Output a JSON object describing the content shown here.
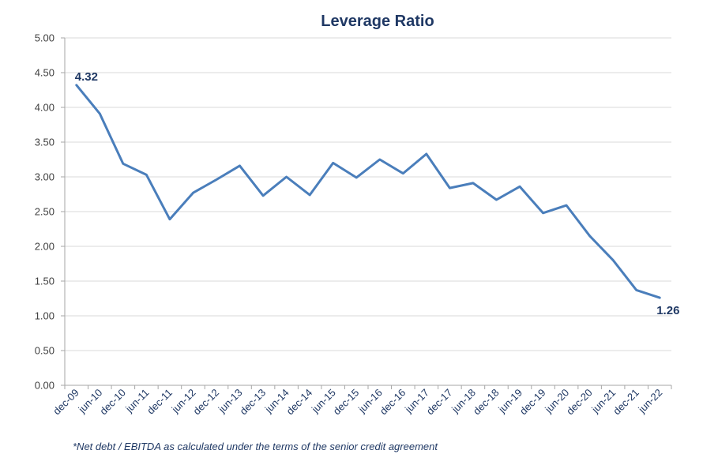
{
  "chart_data": {
    "type": "line",
    "title": "Leverage Ratio",
    "xlabel": "",
    "ylabel": "",
    "ylim": [
      0,
      5
    ],
    "yticks": [
      "0.00",
      "0.50",
      "1.00",
      "1.50",
      "2.00",
      "2.50",
      "3.00",
      "3.50",
      "4.00",
      "4.50",
      "5.00"
    ],
    "categories": [
      "dec-09",
      "jun-10",
      "dec-10",
      "jun-11",
      "dec-11",
      "jun-12",
      "dec-12",
      "jun-13",
      "dec-13",
      "jun-14",
      "dec-14",
      "jun-15",
      "dec-15",
      "jun-16",
      "dec-16",
      "jun-17",
      "dec-17",
      "jun-18",
      "dec-18",
      "jun-19",
      "dec-19",
      "jun-20",
      "dec-20",
      "jun-21",
      "dec-21",
      "jun-22"
    ],
    "series": [
      {
        "values": [
          4.32,
          3.91,
          3.19,
          3.03,
          2.39,
          2.77,
          2.96,
          3.16,
          2.73,
          3.0,
          2.74,
          3.2,
          2.99,
          3.25,
          3.05,
          3.33,
          2.84,
          2.91,
          2.67,
          2.86,
          2.48,
          2.59,
          2.15,
          1.8,
          1.37,
          1.26
        ],
        "color": "#4a7ebb"
      }
    ],
    "data_labels": [
      {
        "index": 0,
        "text": "4.32"
      },
      {
        "index": 25,
        "text": "1.26"
      }
    ],
    "grid": true,
    "legend": "none"
  },
  "footnote": "*Net debt / EBITDA as calculated under the terms of the senior credit agreement"
}
